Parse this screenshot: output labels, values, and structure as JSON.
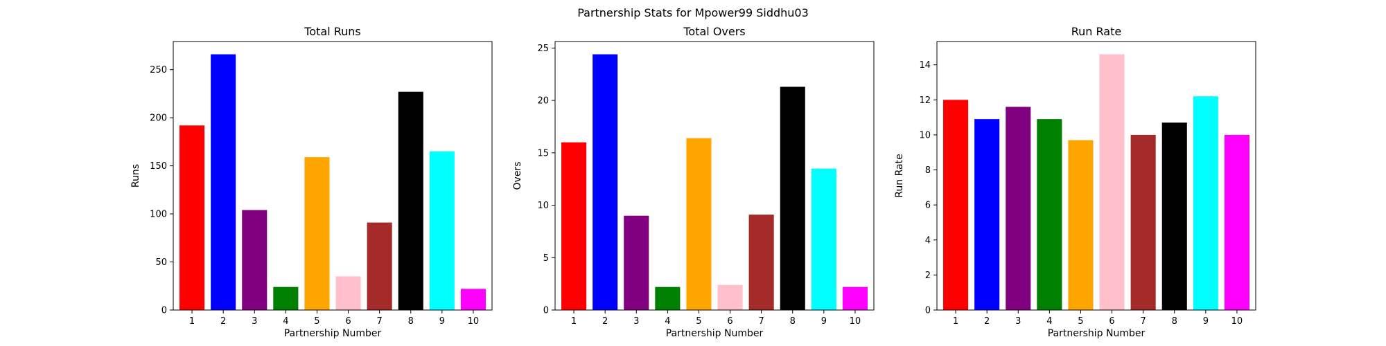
{
  "figure": {
    "title": "Partnership Stats for Mpower99 Siddhu03"
  },
  "chart_data": [
    {
      "type": "bar",
      "title": "Total Runs",
      "xlabel": "Partnership Number",
      "ylabel": "Runs",
      "categories": [
        "1",
        "2",
        "3",
        "4",
        "5",
        "6",
        "7",
        "8",
        "9",
        "10"
      ],
      "values": [
        192,
        266,
        104,
        24,
        159,
        35,
        91,
        227,
        165,
        22
      ],
      "colors": [
        "#ff0000",
        "#0000ff",
        "#800080",
        "#008000",
        "#ffa500",
        "#ffc0cb",
        "#a52a2a",
        "#000000",
        "#00ffff",
        "#ff00ff"
      ],
      "ylim": [
        0,
        279.3
      ],
      "yticks": [
        0,
        50,
        100,
        150,
        200,
        250
      ],
      "grid": false
    },
    {
      "type": "bar",
      "title": "Total Overs",
      "xlabel": "Partnership Number",
      "ylabel": "Overs",
      "categories": [
        "1",
        "2",
        "3",
        "4",
        "5",
        "6",
        "7",
        "8",
        "9",
        "10"
      ],
      "values": [
        16.0,
        24.4,
        9.0,
        2.2,
        16.4,
        2.4,
        9.1,
        21.3,
        13.5,
        2.2
      ],
      "colors": [
        "#ff0000",
        "#0000ff",
        "#800080",
        "#008000",
        "#ffa500",
        "#ffc0cb",
        "#a52a2a",
        "#000000",
        "#00ffff",
        "#ff00ff"
      ],
      "ylim": [
        0,
        25.62
      ],
      "yticks": [
        0,
        5,
        10,
        15,
        20,
        25
      ],
      "grid": false
    },
    {
      "type": "bar",
      "title": "Run Rate",
      "xlabel": "Partnership Number",
      "ylabel": "Run Rate",
      "categories": [
        "1",
        "2",
        "3",
        "4",
        "5",
        "6",
        "7",
        "8",
        "9",
        "10"
      ],
      "values": [
        12.0,
        10.9,
        11.6,
        10.9,
        9.7,
        14.6,
        10.0,
        10.7,
        12.2,
        10.0
      ],
      "colors": [
        "#ff0000",
        "#0000ff",
        "#800080",
        "#008000",
        "#ffa500",
        "#ffc0cb",
        "#a52a2a",
        "#000000",
        "#00ffff",
        "#ff00ff"
      ],
      "ylim": [
        0,
        15.33
      ],
      "yticks": [
        0,
        2,
        4,
        6,
        8,
        10,
        12,
        14
      ],
      "grid": false
    }
  ]
}
